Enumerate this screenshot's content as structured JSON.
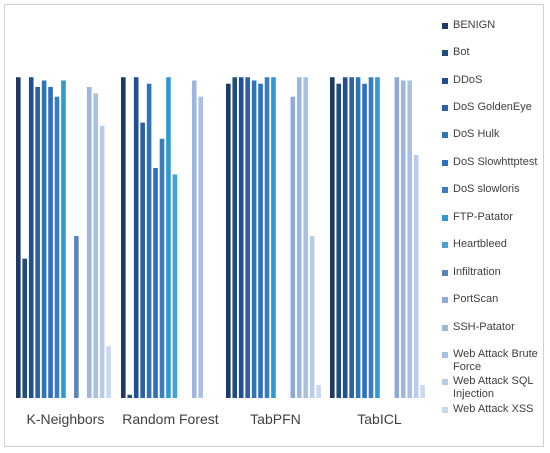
{
  "chart_data": {
    "type": "bar",
    "title": "",
    "xlabel": "",
    "ylabel": "",
    "ylim": [
      0,
      1
    ],
    "grid": false,
    "legend_position": "right",
    "categories": [
      "K-Neighbors",
      "Random Forest",
      "TabPFN",
      "TabICL"
    ],
    "series": [
      {
        "name": "BENIGN",
        "color": "#1f3864",
        "values": [
          0.99,
          0.99,
          0.97,
          0.99
        ]
      },
      {
        "name": "Bot",
        "color": "#1f4e79",
        "values": [
          0.43,
          0.01,
          0.99,
          0.97
        ]
      },
      {
        "name": "DDoS",
        "color": "#204f91",
        "values": [
          0.99,
          0.99,
          0.99,
          0.99
        ]
      },
      {
        "name": "DoS GoldenEye",
        "color": "#2e5fa0",
        "values": [
          0.96,
          0.85,
          0.99,
          0.99
        ]
      },
      {
        "name": "DoS Hulk",
        "color": "#2e75b6",
        "values": [
          0.98,
          0.97,
          0.98,
          0.99
        ]
      },
      {
        "name": "DoS Slowhttptest",
        "color": "#2f6fbb",
        "values": [
          0.96,
          0.71,
          0.97,
          0.97
        ]
      },
      {
        "name": "DoS slowloris",
        "color": "#3a7dbf",
        "values": [
          0.93,
          0.8,
          0.99,
          0.99
        ]
      },
      {
        "name": "FTP-Patator",
        "color": "#2e9ad0",
        "values": [
          0.98,
          0.99,
          0.99,
          0.99
        ]
      },
      {
        "name": "Heartbleed",
        "color": "#45a3cf",
        "values": [
          0.0,
          0.69,
          0.0,
          0.0
        ]
      },
      {
        "name": "Infiltration",
        "color": "#5b84bd",
        "values": [
          0.5,
          0.0,
          0.0,
          0.0
        ]
      },
      {
        "name": "PortScan",
        "color": "#8fa9d6",
        "values": [
          0.0,
          0.0,
          0.93,
          0.99
        ]
      },
      {
        "name": "SSH-Patator",
        "color": "#9db6dd",
        "values": [
          0.96,
          0.98,
          0.99,
          0.98
        ]
      },
      {
        "name": "Web Attack Brute Force",
        "color": "#a9c0e3",
        "values": [
          0.94,
          0.93,
          0.99,
          0.98
        ]
      },
      {
        "name": "Web Attack SQL Injection",
        "color": "#b8cce8",
        "values": [
          0.84,
          0.0,
          0.5,
          0.75
        ]
      },
      {
        "name": "Web Attack XSS",
        "color": "#c9d8ee",
        "values": [
          0.16,
          0.0,
          0.04,
          0.04
        ]
      }
    ]
  }
}
